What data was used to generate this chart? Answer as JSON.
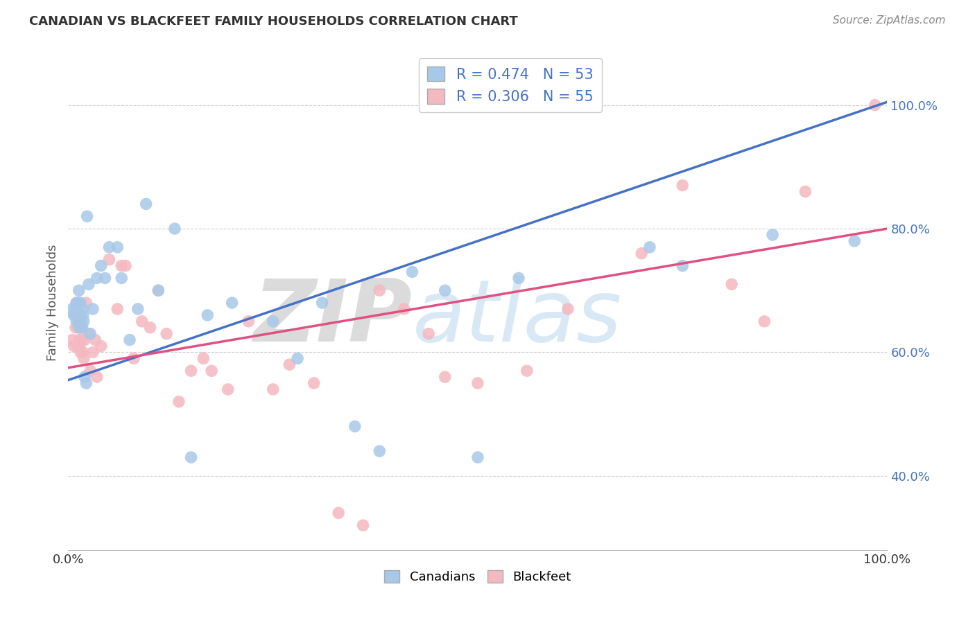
{
  "title": "CANADIAN VS BLACKFEET FAMILY HOUSEHOLDS CORRELATION CHART",
  "source": "Source: ZipAtlas.com",
  "ylabel": "Family Households",
  "xlim": [
    0.0,
    1.0
  ],
  "ylim": [
    0.28,
    1.08
  ],
  "yticks": [
    0.4,
    0.6,
    0.8,
    1.0
  ],
  "ytick_labels": [
    "40.0%",
    "60.0%",
    "80.0%",
    "100.0%"
  ],
  "xticks": [
    0.0,
    0.1,
    0.2,
    0.3,
    0.4,
    0.5,
    0.6,
    0.7,
    0.8,
    0.9,
    1.0
  ],
  "xtick_labels": [
    "0.0%",
    "",
    "",
    "",
    "",
    "",
    "",
    "",
    "",
    "",
    "100.0%"
  ],
  "canadians_R": 0.474,
  "canadians_N": 53,
  "blackfeet_R": 0.306,
  "blackfeet_N": 55,
  "canadians_color": "#a8c8e8",
  "blackfeet_color": "#f4b8c0",
  "canadians_line_color": "#4472c4",
  "blackfeet_line_color": "#e05080",
  "ytick_color": "#4472c4",
  "watermark_color": "#c8dff0",
  "canadians_x": [
    0.005,
    0.007,
    0.008,
    0.009,
    0.01,
    0.01,
    0.011,
    0.012,
    0.012,
    0.013,
    0.013,
    0.014,
    0.015,
    0.015,
    0.015,
    0.016,
    0.017,
    0.018,
    0.018,
    0.019,
    0.02,
    0.022,
    0.023,
    0.025,
    0.027,
    0.03,
    0.035,
    0.04,
    0.045,
    0.05,
    0.06,
    0.065,
    0.075,
    0.085,
    0.095,
    0.11,
    0.13,
    0.15,
    0.17,
    0.2,
    0.25,
    0.28,
    0.31,
    0.35,
    0.38,
    0.42,
    0.46,
    0.5,
    0.55,
    0.71,
    0.75,
    0.86,
    0.96
  ],
  "canadians_y": [
    0.67,
    0.66,
    0.66,
    0.67,
    0.65,
    0.68,
    0.66,
    0.66,
    0.68,
    0.65,
    0.7,
    0.64,
    0.66,
    0.64,
    0.68,
    0.65,
    0.64,
    0.66,
    0.67,
    0.65,
    0.56,
    0.55,
    0.82,
    0.71,
    0.63,
    0.67,
    0.72,
    0.74,
    0.72,
    0.77,
    0.77,
    0.72,
    0.62,
    0.67,
    0.84,
    0.7,
    0.8,
    0.43,
    0.66,
    0.68,
    0.65,
    0.59,
    0.68,
    0.48,
    0.44,
    0.73,
    0.7,
    0.43,
    0.72,
    0.77,
    0.74,
    0.79,
    0.78
  ],
  "blackfeet_x": [
    0.005,
    0.007,
    0.009,
    0.01,
    0.011,
    0.012,
    0.013,
    0.013,
    0.014,
    0.015,
    0.016,
    0.017,
    0.018,
    0.019,
    0.02,
    0.022,
    0.025,
    0.027,
    0.03,
    0.033,
    0.035,
    0.04,
    0.05,
    0.06,
    0.065,
    0.07,
    0.08,
    0.09,
    0.1,
    0.11,
    0.12,
    0.135,
    0.15,
    0.165,
    0.175,
    0.195,
    0.22,
    0.25,
    0.27,
    0.3,
    0.33,
    0.36,
    0.38,
    0.41,
    0.44,
    0.46,
    0.5,
    0.56,
    0.61,
    0.7,
    0.75,
    0.81,
    0.85,
    0.9,
    0.985
  ],
  "blackfeet_y": [
    0.62,
    0.61,
    0.64,
    0.68,
    0.61,
    0.64,
    0.61,
    0.62,
    0.65,
    0.6,
    0.62,
    0.64,
    0.6,
    0.59,
    0.62,
    0.68,
    0.63,
    0.57,
    0.6,
    0.62,
    0.56,
    0.61,
    0.75,
    0.67,
    0.74,
    0.74,
    0.59,
    0.65,
    0.64,
    0.7,
    0.63,
    0.52,
    0.57,
    0.59,
    0.57,
    0.54,
    0.65,
    0.54,
    0.58,
    0.55,
    0.34,
    0.32,
    0.7,
    0.67,
    0.63,
    0.56,
    0.55,
    0.57,
    0.67,
    0.76,
    0.87,
    0.71,
    0.65,
    0.86,
    1.0
  ],
  "canadians_trend_x": [
    0.0,
    1.0
  ],
  "canadians_trend_y": [
    0.555,
    1.005
  ],
  "blackfeet_trend_x": [
    0.0,
    1.0
  ],
  "blackfeet_trend_y": [
    0.575,
    0.8
  ]
}
